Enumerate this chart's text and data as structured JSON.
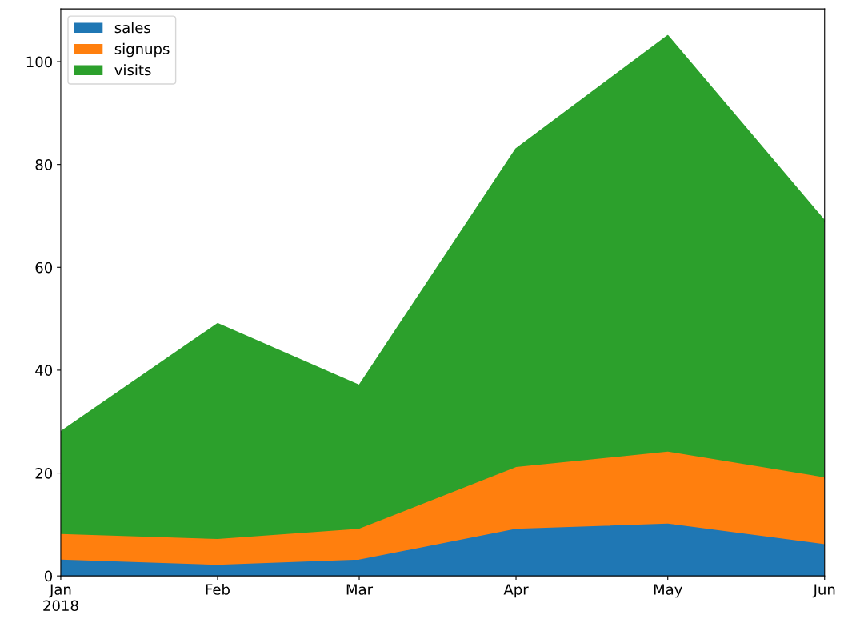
{
  "chart_data": {
    "type": "area",
    "stacked": true,
    "x": [
      "2018-01",
      "2018-02",
      "2018-03",
      "2018-04",
      "2018-05",
      "2018-06"
    ],
    "series": [
      {
        "name": "sales",
        "color": "#1f77b4",
        "values": [
          3,
          2,
          3,
          9,
          10,
          6
        ]
      },
      {
        "name": "signups",
        "color": "#ff7f0e",
        "values": [
          5,
          5,
          6,
          12,
          14,
          13
        ]
      },
      {
        "name": "visits",
        "color": "#2ca02c",
        "values": [
          20,
          42,
          28,
          62,
          81,
          50
        ]
      }
    ],
    "xlim": [
      "2018-01",
      "2018-06"
    ],
    "xticks": [
      {
        "value": "2018-01",
        "label": "Jan\n2018"
      },
      {
        "value": "2018-02",
        "label": "Feb"
      },
      {
        "value": "2018-03",
        "label": "Mar"
      },
      {
        "value": "2018-04",
        "label": "Apr"
      },
      {
        "value": "2018-05",
        "label": "May"
      },
      {
        "value": "2018-06",
        "label": "Jun"
      }
    ],
    "ylim": [
      0,
      110.25
    ],
    "yticks": [
      0,
      20,
      40,
      60,
      80,
      100
    ],
    "legend": "top left",
    "grid": false
  }
}
